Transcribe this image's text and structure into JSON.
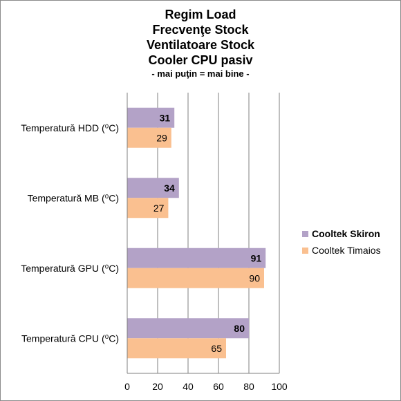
{
  "title_lines": [
    "Regim Load",
    "Frecvenţe Stock",
    "Ventilatoare Stock",
    "Cooler CPU pasiv"
  ],
  "subtitle": "- mai puţin = mai bine -",
  "chart_data": {
    "type": "bar",
    "orientation": "horizontal",
    "categories": [
      "Temperatură  HDD (⁰C)",
      "Temperatură  MB (⁰C)",
      "Temperatură  GPU (⁰C)",
      "Temperatură  CPU (⁰C)"
    ],
    "series": [
      {
        "name": "Cooltek Skiron",
        "values": [
          31,
          34,
          91,
          80
        ],
        "color": "#b3a2c7"
      },
      {
        "name": "Cooltek Timaios",
        "values": [
          29,
          27,
          90,
          65
        ],
        "color": "#fac090"
      }
    ],
    "xlim": [
      0,
      100
    ],
    "xticks": [
      0,
      20,
      40,
      60,
      80,
      100
    ],
    "grid": true,
    "legend_position": "right"
  }
}
